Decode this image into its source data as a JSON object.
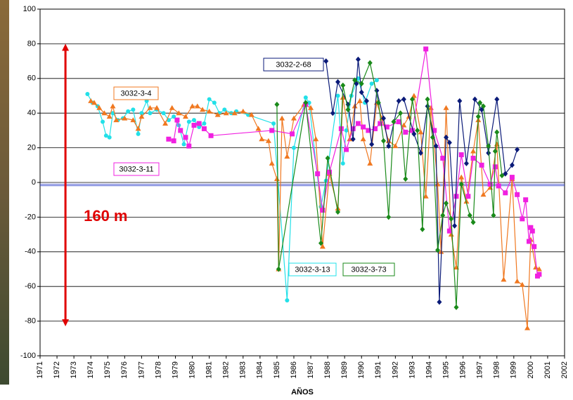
{
  "chart_data": {
    "type": "line",
    "x_label": "AÑOS",
    "xlim": [
      1971,
      2002
    ],
    "xticks": [
      1971,
      1972,
      1973,
      1974,
      1975,
      1976,
      1977,
      1978,
      1979,
      1980,
      1981,
      1982,
      1983,
      1984,
      1985,
      1986,
      1987,
      1988,
      1989,
      1990,
      1991,
      1992,
      1993,
      1994,
      1995,
      1996,
      1997,
      1998,
      1999,
      2000,
      2001,
      2002
    ],
    "ylim": [
      -100,
      100
    ],
    "yticks": [
      -100,
      -80,
      -60,
      -40,
      -20,
      0,
      20,
      40,
      60,
      80,
      100
    ],
    "grid": true,
    "reference_line": {
      "value": -1.5,
      "color": "#3344cc"
    },
    "arrow": {
      "x": 1972.5,
      "from": 80,
      "to": -83,
      "color": "#e00000",
      "label": "160 m"
    },
    "series": [
      {
        "name": "3032-3-13",
        "color": "#22e0e8",
        "marker": "circle",
        "x": [
          1973.8,
          1974.1,
          1974.4,
          1974.7,
          1974.9,
          1975.1,
          1975.3,
          1975.6,
          1975.9,
          1976.2,
          1976.5,
          1976.8,
          1977.0,
          1977.3,
          1977.5,
          1977.9,
          1978.3,
          1978.6,
          1978.9,
          1979.2,
          1979.5,
          1979.8,
          1980.1,
          1980.4,
          1980.7,
          1981.0,
          1981.3,
          1981.6,
          1981.9,
          1982.3,
          1982.6,
          1983.3,
          1984.8,
          1985.6,
          1986.0,
          1986.7,
          1986.9,
          1987.6,
          1987.9,
          1988.6,
          1988.9,
          1989.1,
          1989.4,
          1989.8,
          1990.2,
          1990.6,
          1990.9
        ],
        "values": [
          51,
          46,
          44,
          35,
          27,
          26,
          40,
          36,
          37,
          41,
          42,
          28,
          40,
          47,
          40,
          42,
          40,
          36,
          38,
          33,
          22,
          35,
          36,
          32,
          34,
          48,
          46,
          40,
          42,
          40,
          41,
          39,
          34,
          -68,
          20,
          49,
          46,
          -14,
          1,
          50,
          11,
          30,
          50,
          60,
          46,
          57,
          59
        ]
      },
      {
        "name": "3032-3-4",
        "color": "#f07820",
        "marker": "triangle",
        "x": [
          1974.0,
          1974.2,
          1974.5,
          1974.8,
          1975.1,
          1975.3,
          1975.5,
          1976.0,
          1976.5,
          1976.8,
          1977.0,
          1977.5,
          1977.9,
          1978.4,
          1978.8,
          1979.2,
          1979.6,
          1980.0,
          1980.3,
          1980.6,
          1981.0,
          1981.5,
          1982.0,
          1982.5,
          1983.0,
          1983.5,
          1983.9,
          1984.1,
          1984.5,
          1984.7,
          1985.0,
          1985.1,
          1985.3,
          1985.6,
          1986.0,
          1986.6,
          1987.0,
          1987.3,
          1987.7,
          1988.1,
          1988.6,
          1988.9,
          1989.3,
          1989.6,
          1989.9,
          1990.1,
          1990.5,
          1990.9,
          1991.2,
          1991.6,
          1992.0,
          1992.5,
          1992.8,
          1993.1,
          1993.5,
          1993.8,
          1994.1,
          1994.5,
          1994.7,
          1995.0,
          1995.3,
          1995.6,
          1995.9,
          1996.2,
          1996.6,
          1996.9,
          1997.2,
          1997.6,
          1998.0,
          1998.4,
          1998.9,
          1999.2,
          1999.5,
          1999.8,
          2000.0,
          2000.3,
          2000.5
        ],
        "values": [
          47,
          46,
          43,
          40,
          38,
          44,
          36,
          37,
          36,
          31,
          38,
          43,
          43,
          34,
          43,
          40,
          38,
          44,
          44,
          42,
          41,
          39,
          40,
          40,
          41,
          39,
          31,
          25,
          24,
          11,
          2,
          -50,
          37,
          15,
          37,
          45,
          43,
          25,
          -37,
          5,
          -15,
          49,
          25,
          44,
          47,
          25,
          11,
          46,
          37,
          24,
          21,
          33,
          38,
          50,
          29,
          -8,
          43,
          -1,
          -40,
          43,
          -30,
          -49,
          3,
          -11,
          18,
          36,
          -7,
          -3,
          22,
          -56,
          2,
          -57,
          -59,
          -84,
          -33,
          -49,
          -50
        ]
      },
      {
        "name": "3032-3-11",
        "color": "#f020e0",
        "marker": "square",
        "x": [
          1978.6,
          1978.9,
          1979.1,
          1979.3,
          1979.6,
          1979.8,
          1980.1,
          1980.4,
          1980.7,
          1981.1,
          1984.7,
          1985.9,
          1986.7,
          1987.4,
          1987.7,
          1988.1,
          1988.8,
          1989.1,
          1989.5,
          1989.8,
          1990.1,
          1990.4,
          1990.8,
          1991.1,
          1991.5,
          1992.2,
          1992.6,
          1993.0,
          1993.8,
          1994.3,
          1994.8,
          1995.2,
          1995.6,
          1995.9,
          1996.3,
          1996.6,
          1997.1,
          1997.6,
          1997.9,
          1998.1,
          1998.5,
          1998.9,
          1999.2,
          1999.5,
          1999.7,
          1999.9,
          2000.0,
          2000.1,
          2000.2,
          2000.4,
          2000.5
        ],
        "values": [
          25,
          24,
          36,
          30,
          26,
          21,
          33,
          34,
          31,
          27,
          30,
          28,
          45,
          5,
          -16,
          6,
          31,
          19,
          31,
          34,
          32,
          30,
          31,
          34,
          32,
          35,
          29,
          30,
          77,
          30,
          14,
          -28,
          -8,
          16,
          -8,
          14,
          10,
          -1,
          9,
          -2,
          -6,
          3,
          -7,
          -21,
          -10,
          -34,
          -26,
          -28,
          -37,
          -54,
          -53
        ]
      },
      {
        "name": "3032-2-68",
        "color": "#0a1a78",
        "marker": "diamond",
        "x": [
          1987.9,
          1988.3,
          1988.6,
          1989.2,
          1989.5,
          1989.7,
          1989.8,
          1990.0,
          1990.3,
          1990.6,
          1990.9,
          1991.3,
          1991.6,
          1992.2,
          1992.5,
          1993.1,
          1993.5,
          1993.9,
          1994.4,
          1994.6,
          1995.0,
          1995.2,
          1995.5,
          1995.8,
          1996.2,
          1996.7,
          1997.1,
          1997.5,
          1998.0,
          1998.5,
          1998.9,
          1999.2
        ],
        "values": [
          70,
          40,
          58,
          45,
          25,
          57,
          71,
          52,
          47,
          22,
          53,
          37,
          21,
          47,
          48,
          28,
          17,
          44,
          21,
          -69,
          26,
          23,
          -25,
          47,
          11,
          48,
          42,
          17,
          48,
          5,
          10,
          19
        ]
      },
      {
        "name": "3032-3-73",
        "color": "#1a8a1a",
        "marker": "diamond",
        "x": [
          1985.0,
          1985.1,
          1986.7,
          1987.6,
          1988.0,
          1988.6,
          1988.9,
          1989.2,
          1989.6,
          1990.0,
          1990.5,
          1991.0,
          1991.3,
          1991.6,
          1991.9,
          1992.3,
          1992.6,
          1993.0,
          1993.3,
          1993.6,
          1993.9,
          1994.2,
          1994.5,
          1994.8,
          1995.0,
          1995.3,
          1995.6,
          1995.9,
          1996.4,
          1996.6,
          1996.9,
          1997.0,
          1997.2,
          1997.5,
          1997.8,
          1997.9,
          1998.0,
          1998.3
        ],
        "values": [
          45,
          -50,
          46,
          -35,
          14,
          -17,
          56,
          42,
          59,
          57,
          69,
          46,
          24,
          -20,
          35,
          40,
          2,
          48,
          30,
          -27,
          48,
          26,
          -39,
          -19,
          -12,
          -21,
          -72,
          -1,
          -19,
          -23,
          38,
          46,
          44,
          21,
          -19,
          18,
          29,
          4
        ]
      }
    ]
  }
}
